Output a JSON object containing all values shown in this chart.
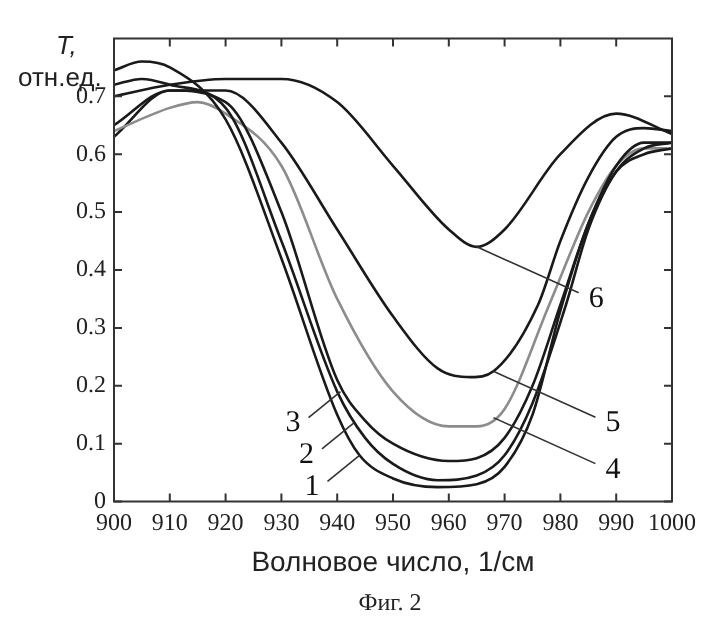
{
  "chart_data": {
    "type": "line",
    "xlabel": "Волновое число, 1/см",
    "ylabel": "T, отн.ед.",
    "xlim": [
      900,
      1000
    ],
    "xticks": [
      900,
      910,
      920,
      930,
      940,
      950,
      960,
      970,
      980,
      990,
      1000
    ],
    "ylim": [
      0,
      0.8
    ],
    "yticks": [
      0,
      0.1,
      0.2,
      0.3,
      0.4,
      0.5,
      0.6,
      0.7
    ],
    "grid": false,
    "legend": false,
    "marker": "none",
    "line_style": "solid",
    "series": [
      {
        "color": "#1a1a1a",
        "x": [
          900,
          905,
          910,
          920,
          930,
          940,
          944,
          950,
          958,
          965,
          970,
          975,
          980,
          985,
          990,
          995,
          1000
        ],
        "values": [
          0.745,
          0.76,
          0.75,
          0.66,
          0.42,
          0.15,
          0.08,
          0.04,
          0.025,
          0.03,
          0.06,
          0.15,
          0.33,
          0.48,
          0.57,
          0.6,
          0.61
        ]
      },
      {
        "color": "#1a1a1a",
        "x": [
          900,
          905,
          910,
          920,
          930,
          940,
          945,
          950,
          958,
          965,
          970,
          975,
          981,
          985,
          990,
          995,
          1000
        ],
        "values": [
          0.72,
          0.73,
          0.72,
          0.68,
          0.45,
          0.19,
          0.11,
          0.065,
          0.037,
          0.045,
          0.08,
          0.17,
          0.34,
          0.47,
          0.57,
          0.61,
          0.62
        ]
      },
      {
        "color": "#1a1a1a",
        "x": [
          900,
          910,
          920,
          930,
          940,
          945,
          950,
          960,
          965,
          970,
          975,
          980,
          985,
          990,
          995,
          1000
        ],
        "values": [
          0.65,
          0.71,
          0.69,
          0.5,
          0.21,
          0.14,
          0.1,
          0.07,
          0.075,
          0.11,
          0.2,
          0.34,
          0.48,
          0.58,
          0.62,
          0.62
        ]
      },
      {
        "color": "#8c8c8c",
        "x": [
          900,
          910,
          915,
          920,
          930,
          940,
          950,
          960,
          965,
          970,
          978,
          985,
          990,
          995,
          1000
        ],
        "values": [
          0.64,
          0.68,
          0.69,
          0.67,
          0.58,
          0.35,
          0.19,
          0.13,
          0.13,
          0.16,
          0.34,
          0.5,
          0.58,
          0.61,
          0.61
        ]
      },
      {
        "color": "#1a1a1a",
        "x": [
          900,
          910,
          920,
          930,
          940,
          950,
          958,
          964,
          968,
          976,
          980,
          985,
          990,
          995,
          1000
        ],
        "values": [
          0.63,
          0.71,
          0.71,
          0.62,
          0.47,
          0.32,
          0.23,
          0.215,
          0.225,
          0.34,
          0.45,
          0.56,
          0.63,
          0.645,
          0.64
        ]
      },
      {
        "color": "#1a1a1a",
        "x": [
          900,
          910,
          920,
          930,
          940,
          950,
          960,
          965,
          970,
          980,
          990,
          1000
        ],
        "values": [
          0.7,
          0.72,
          0.73,
          0.73,
          0.69,
          0.58,
          0.47,
          0.44,
          0.47,
          0.6,
          0.67,
          0.635
        ]
      }
    ],
    "annotations": [
      {
        "text": "1",
        "x": 944,
        "y": 0.08
      },
      {
        "text": "2",
        "x": 943,
        "y": 0.136
      },
      {
        "text": "3",
        "x": 940.6,
        "y": 0.19
      },
      {
        "text": "4",
        "x": 968,
        "y": 0.145
      },
      {
        "text": "5",
        "x": 968,
        "y": 0.225
      },
      {
        "text": "6",
        "x": 965,
        "y": 0.44
      },
      "Фиг. 2"
    ]
  }
}
